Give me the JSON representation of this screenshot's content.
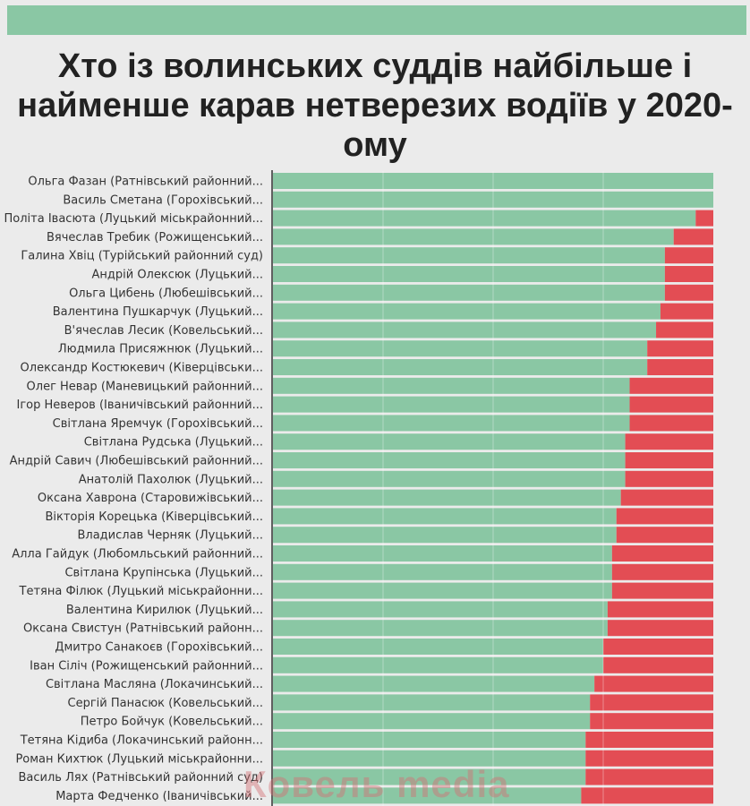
{
  "header": {
    "band_color": "#8ac7a4"
  },
  "chart_data": {
    "type": "bar",
    "orientation": "horizontal",
    "stacked": true,
    "normalized": true,
    "title": "Хто із волинських суддів найбільше і найменше карав нетверезих водіїв у 2020-ому",
    "xlabel": "",
    "ylabel": "",
    "xlim": [
      0,
      100
    ],
    "grid": true,
    "legend": "none",
    "categories": [
      "Ольга Фазан (Ратнівський районний...",
      "Василь Сметана (Горохівський...",
      "Політа Івасюта (Луцький міськрайонний...",
      "Вячеслав Требик (Рожищенський...",
      "Галина Хвіц (Турійський районний суд)",
      "Андрій Олексюк (Луцький...",
      "Ольга Цибень (Любешівський...",
      "Валентина Пушкарчук (Луцький...",
      "В'ячеслав Лесик (Ковельський...",
      "Людмила Присяжнюк (Луцький...",
      "Олександр Костюкевич (Ківерцівськи...",
      "Олег Невар (Маневицький районний...",
      "Ігор Неверов (Іваничівський районний...",
      "Світлана Яремчук (Горохівський...",
      "Світлана Рудська (Луцький...",
      "Андрій Савич (Любешівський районний...",
      "Анатолій Пахолюк (Луцький...",
      "Оксана Хаврона (Старовижівський...",
      "Вікторія Корецька (Ківерцівський...",
      "Владислав Черняк (Луцький...",
      "Алла Гайдук (Любомльський районний...",
      "Світлана Крупінська (Луцький...",
      "Тетяна Філюк (Луцький міськрайонни...",
      "Валентина Кирилюк (Луцький...",
      "Оксана Свистун (Ратнівський районн...",
      "Дмитро Санакоєв (Горохівський...",
      "Іван Сіліч (Рожищенський районний...",
      "Світлана Масляна (Локачинський...",
      "Сергій Панасюк (Ковельський...",
      "Петро Бойчук (Ковельський...",
      "Тетяна Кідиба (Локачинський районн...",
      "Роман Кихтюк (Луцький міськрайонни...",
      "Василь Лях (Ратнівський районний суд)",
      "Марта Федченко (Іваничівський..."
    ],
    "series": [
      {
        "color": "#8ac7a4",
        "values": [
          100,
          100,
          96,
          91,
          89,
          89,
          89,
          88,
          87,
          85,
          85,
          81,
          81,
          81,
          80,
          80,
          80,
          79,
          78,
          78,
          77,
          77,
          77,
          76,
          76,
          75,
          75,
          73,
          72,
          72,
          71,
          71,
          71,
          70
        ]
      },
      {
        "color": "#e34d54",
        "values": [
          0,
          0,
          4,
          9,
          11,
          11,
          11,
          12,
          13,
          15,
          15,
          19,
          19,
          19,
          20,
          20,
          20,
          21,
          22,
          22,
          23,
          23,
          23,
          24,
          24,
          25,
          25,
          27,
          28,
          28,
          29,
          29,
          29,
          30
        ]
      }
    ]
  },
  "watermark": "Ковель media"
}
